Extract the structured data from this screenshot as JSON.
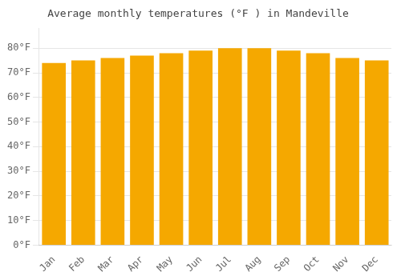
{
  "chart_data": {
    "type": "bar",
    "title": "Average monthly temperatures (°F ) in Mandeville",
    "categories": [
      "Jan",
      "Feb",
      "Mar",
      "Apr",
      "May",
      "Jun",
      "Jul",
      "Aug",
      "Sep",
      "Oct",
      "Nov",
      "Dec"
    ],
    "values": [
      74,
      75,
      76,
      77,
      78,
      79,
      80,
      80,
      79,
      78,
      76,
      75
    ],
    "color": "#F5A800",
    "ylim": [
      0,
      88
    ],
    "yticks": [
      {
        "value": 0,
        "label": "0°F"
      },
      {
        "value": 10,
        "label": "10°F"
      },
      {
        "value": 20,
        "label": "20°F"
      },
      {
        "value": 30,
        "label": "30°F"
      },
      {
        "value": 40,
        "label": "40°F"
      },
      {
        "value": 50,
        "label": "50°F"
      },
      {
        "value": 60,
        "label": "60°F"
      },
      {
        "value": 70,
        "label": "70°F"
      },
      {
        "value": 80,
        "label": "80°F"
      }
    ],
    "grid": true
  }
}
